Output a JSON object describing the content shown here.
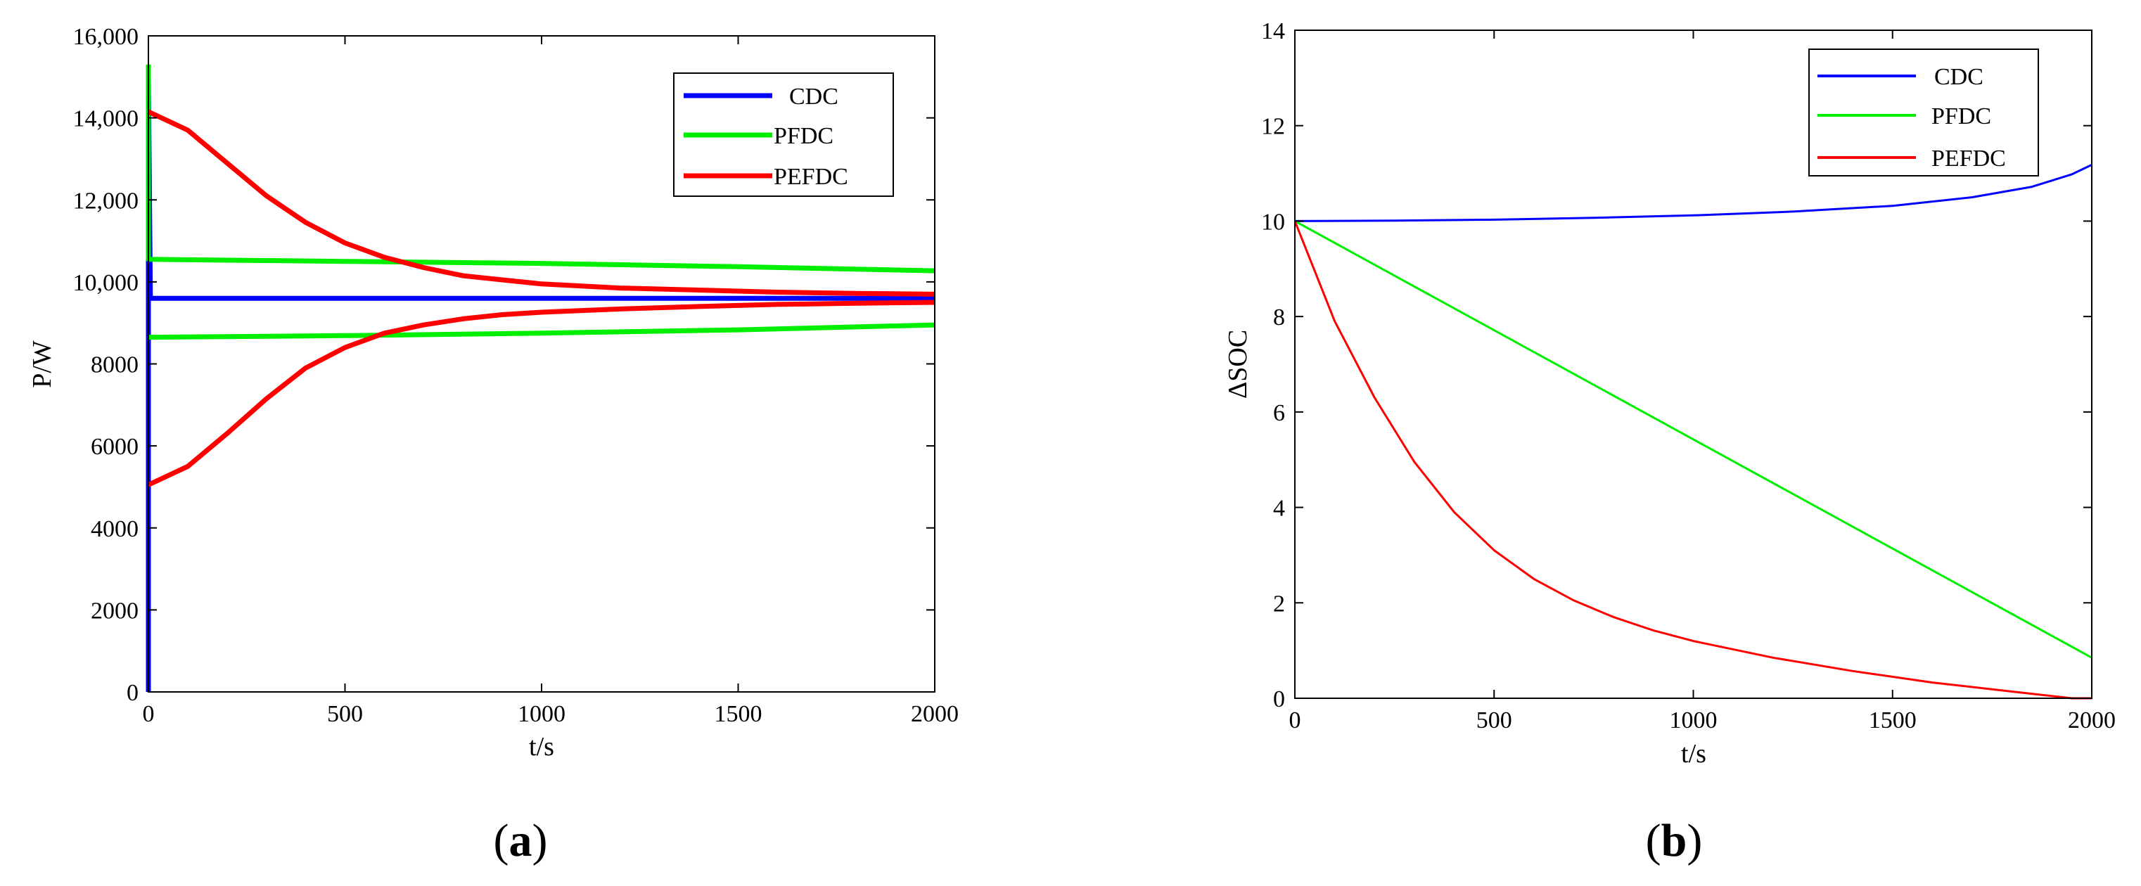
{
  "chart_data": [
    {
      "type": "line",
      "panel_label": "a",
      "title": "",
      "xlabel": "t/s",
      "ylabel": "P/W",
      "xlim": [
        0,
        2000
      ],
      "ylim": [
        0,
        16000
      ],
      "xticks": [
        0,
        500,
        1000,
        1500,
        2000
      ],
      "xtick_labels": [
        "0",
        "500",
        "1000",
        "1500",
        "2000"
      ],
      "yticks": [
        0,
        2000,
        4000,
        6000,
        8000,
        10000,
        12000,
        14000,
        16000
      ],
      "ytick_labels": [
        "0",
        "2000",
        "4000",
        "6000",
        "8000",
        "10,000",
        "12,000",
        "14,000",
        "16,000"
      ],
      "grid": false,
      "legend_position": "top-right",
      "legend": [
        "CDC",
        "PFDC",
        "PEFDC"
      ],
      "series": [
        {
          "name": "CDC",
          "color": "#0000ff",
          "width": 7,
          "x": [
            0,
            0,
            5,
            2000
          ],
          "y": [
            0,
            15000,
            9600,
            9600
          ]
        },
        {
          "name": "PFDC",
          "color": "#00ee00",
          "width": 7,
          "x": [
            0,
            0,
            5,
            500,
            1000,
            1500,
            2000
          ],
          "y": [
            15300,
            10550,
            10550,
            10500,
            10450,
            10370,
            10270
          ]
        },
        {
          "name": "PFDC",
          "color": "#00ee00",
          "width": 7,
          "x": [
            0,
            500,
            1000,
            1500,
            2000
          ],
          "y": [
            8650,
            8690,
            8750,
            8830,
            8950
          ]
        },
        {
          "name": "PEFDC",
          "color": "#ff0000",
          "width": 7,
          "x": [
            0,
            100,
            200,
            300,
            400,
            500,
            600,
            700,
            800,
            900,
            1000,
            1200,
            1400,
            1600,
            1800,
            2000
          ],
          "y": [
            14150,
            13700,
            12900,
            12100,
            11450,
            10950,
            10600,
            10350,
            10150,
            10050,
            9950,
            9850,
            9800,
            9750,
            9720,
            9700
          ]
        },
        {
          "name": "PEFDC",
          "color": "#ff0000",
          "width": 7,
          "x": [
            0,
            100,
            200,
            300,
            400,
            500,
            600,
            700,
            800,
            900,
            1000,
            1200,
            1400,
            1600,
            1800,
            2000
          ],
          "y": [
            5050,
            5500,
            6300,
            7150,
            7900,
            8400,
            8750,
            8950,
            9100,
            9200,
            9260,
            9340,
            9400,
            9450,
            9480,
            9500
          ]
        }
      ]
    },
    {
      "type": "line",
      "panel_label": "b",
      "title": "",
      "xlabel": "t/s",
      "ylabel": "ΔSOC",
      "xlim": [
        0,
        2000
      ],
      "ylim": [
        0,
        14
      ],
      "xticks": [
        0,
        500,
        1000,
        1500,
        2000
      ],
      "xtick_labels": [
        "0",
        "500",
        "1000",
        "1500",
        "2000"
      ],
      "yticks": [
        0,
        2,
        4,
        6,
        8,
        10,
        12,
        14
      ],
      "ytick_labels": [
        "0",
        "2",
        "4",
        "6",
        "8",
        "10",
        "12",
        "14"
      ],
      "grid": false,
      "legend_position": "top-right",
      "legend": [
        "CDC",
        "PFDC",
        "PEFDC"
      ],
      "series": [
        {
          "name": "CDC",
          "color": "#0000ff",
          "width": 3,
          "x": [
            0,
            250,
            500,
            750,
            1000,
            1250,
            1500,
            1700,
            1850,
            1950,
            2000
          ],
          "y": [
            10.0,
            10.01,
            10.03,
            10.07,
            10.12,
            10.2,
            10.32,
            10.5,
            10.72,
            10.98,
            11.18
          ]
        },
        {
          "name": "PFDC",
          "color": "#00ee00",
          "width": 3,
          "x": [
            0,
            2000
          ],
          "y": [
            10.0,
            0.85
          ]
        },
        {
          "name": "PEFDC",
          "color": "#ff0000",
          "width": 3,
          "x": [
            0,
            100,
            200,
            300,
            400,
            500,
            600,
            700,
            800,
            900,
            1000,
            1200,
            1400,
            1600,
            1800,
            1950,
            2000
          ],
          "y": [
            10.0,
            7.9,
            6.3,
            4.95,
            3.9,
            3.1,
            2.5,
            2.05,
            1.7,
            1.42,
            1.2,
            0.85,
            0.57,
            0.33,
            0.14,
            0.0,
            0.0
          ]
        }
      ]
    }
  ]
}
